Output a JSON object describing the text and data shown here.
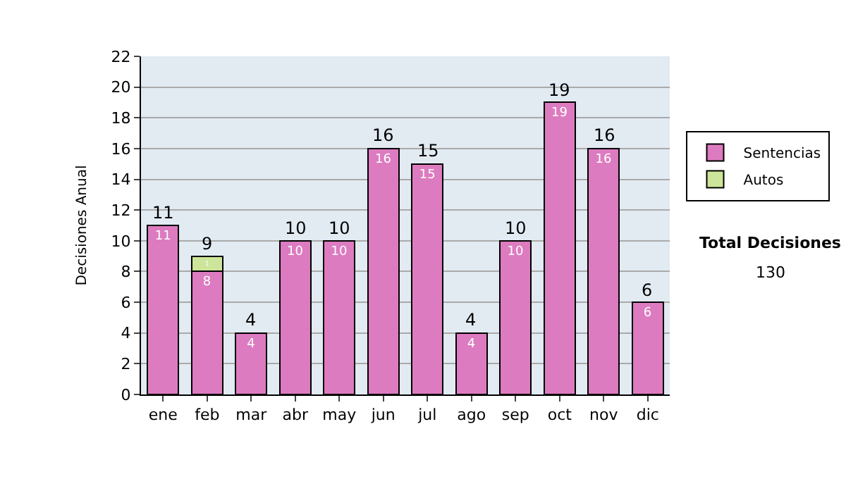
{
  "chart_data": {
    "type": "bar",
    "stacked": true,
    "ylabel": "Decisiones Anual",
    "categories": [
      "ene",
      "feb",
      "mar",
      "abr",
      "may",
      "jun",
      "jul",
      "ago",
      "sep",
      "oct",
      "nov",
      "dic"
    ],
    "series": [
      {
        "name": "Sentencias",
        "color": "#dd7bc0",
        "values": [
          11,
          8,
          4,
          10,
          10,
          16,
          15,
          4,
          10,
          19,
          16,
          6
        ],
        "value_labels": [
          "11",
          "8",
          "4",
          "10",
          "10",
          "16",
          "15",
          "4",
          "10",
          "19",
          "16",
          "6"
        ]
      },
      {
        "name": "Autos",
        "color": "#cde59a",
        "values": [
          null,
          1,
          null,
          null,
          null,
          null,
          null,
          null,
          null,
          null,
          null,
          null
        ],
        "value_labels": [
          null,
          "1",
          null,
          null,
          null,
          null,
          null,
          null,
          null,
          null,
          null,
          null
        ]
      }
    ],
    "totals": [
      "11",
      "9",
      "4",
      "10",
      "10",
      "16",
      "15",
      "4",
      "10",
      "19",
      "16",
      "6"
    ],
    "ylim": [
      0,
      22
    ],
    "yticks": [
      0,
      2,
      4,
      6,
      8,
      10,
      12,
      14,
      16,
      18,
      20,
      22
    ],
    "grid": "y",
    "legend": "right",
    "annotations": [
      "Total Decisiones",
      "130"
    ]
  }
}
